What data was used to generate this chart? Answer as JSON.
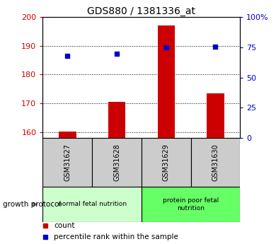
{
  "title": "GDS880 / 1381336_at",
  "samples": [
    "GSM31627",
    "GSM31628",
    "GSM31629",
    "GSM31630"
  ],
  "count_values": [
    160.3,
    170.5,
    197.0,
    173.5
  ],
  "percentile_values": [
    68.0,
    69.5,
    75.0,
    75.5
  ],
  "ylim_left": [
    158,
    200
  ],
  "ylim_right": [
    0,
    100
  ],
  "yticks_left": [
    160,
    170,
    180,
    190,
    200
  ],
  "yticks_right": [
    0,
    25,
    50,
    75,
    100
  ],
  "yticklabels_right": [
    "0",
    "25",
    "50",
    "75",
    "100%"
  ],
  "bar_color": "#cc0000",
  "dot_color": "#0000cc",
  "group1_label": "normal fetal nutrition",
  "group2_label": "protein poor fetal\nnutrition",
  "group1_color": "#ccffcc",
  "group2_color": "#66ff66",
  "group_header": "growth protocol",
  "tick_cell_color": "#cccccc",
  "legend_count_label": "count",
  "legend_pct_label": "percentile rank within the sample",
  "title_fontsize": 10,
  "axis_label_color_left": "#cc0000",
  "axis_label_color_right": "#0000cc",
  "bar_width": 0.35
}
